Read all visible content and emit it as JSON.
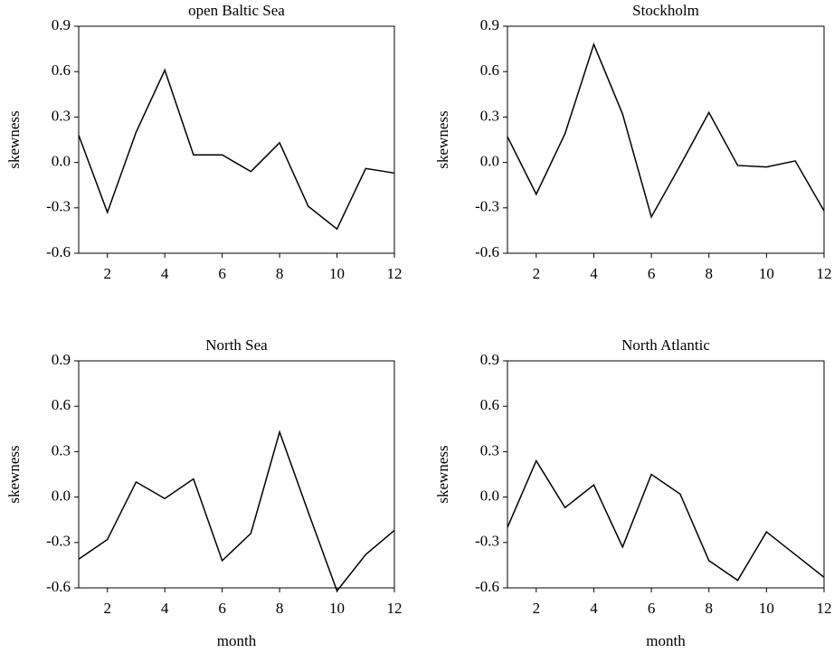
{
  "chart_data": [
    {
      "type": "line",
      "title": "open Baltic Sea",
      "ylabel": "skewness",
      "color": "#000000",
      "x": [
        1,
        2,
        3,
        4,
        5,
        6,
        7,
        8,
        9,
        10,
        11,
        12
      ],
      "values": [
        0.18,
        -0.33,
        0.2,
        0.61,
        0.05,
        0.05,
        -0.06,
        0.13,
        -0.29,
        -0.44,
        -0.04,
        -0.07
      ],
      "xlim": [
        1,
        12
      ],
      "xticks": [
        2,
        4,
        6,
        8,
        10,
        12
      ],
      "ylim": [
        -0.6,
        0.9
      ],
      "yticks": [
        -0.6,
        -0.3,
        {
          "value": 0,
          "label": "0.0"
        },
        0.3,
        0.6,
        0.9
      ]
    },
    {
      "type": "line",
      "title": "Stockholm",
      "ylabel": "skewness",
      "color": "#000000",
      "x": [
        1,
        2,
        3,
        4,
        5,
        6,
        7,
        8,
        9,
        10,
        11,
        12
      ],
      "values": [
        0.17,
        -0.21,
        0.19,
        0.78,
        0.32,
        -0.36,
        -0.02,
        0.33,
        -0.02,
        -0.03,
        0.01,
        -0.32
      ],
      "xlim": [
        1,
        12
      ],
      "xticks": [
        2,
        4,
        6,
        8,
        10,
        12
      ],
      "ylim": [
        -0.6,
        0.9
      ],
      "yticks": [
        -0.6,
        -0.3,
        {
          "value": 0,
          "label": "0.0"
        },
        0.3,
        0.6,
        0.9
      ]
    },
    {
      "type": "line",
      "title": "North Sea",
      "ylabel": "skewness",
      "xlabel": "month",
      "color": "#000000",
      "x": [
        1,
        2,
        3,
        4,
        5,
        6,
        7,
        8,
        9,
        10,
        11,
        12
      ],
      "values": [
        -0.41,
        -0.28,
        0.1,
        -0.01,
        0.12,
        -0.42,
        -0.24,
        0.43,
        -0.1,
        -0.62,
        -0.38,
        -0.22
      ],
      "xlim": [
        1,
        12
      ],
      "xticks": [
        2,
        4,
        6,
        8,
        10,
        12
      ],
      "ylim": [
        -0.6,
        0.9
      ],
      "yticks": [
        -0.6,
        -0.3,
        {
          "value": 0,
          "label": "0.0"
        },
        0.3,
        0.6,
        0.9
      ]
    },
    {
      "type": "line",
      "title": "North Atlantic",
      "ylabel": "skewness",
      "xlabel": "month",
      "color": "#000000",
      "x": [
        1,
        2,
        3,
        4,
        5,
        6,
        7,
        8,
        9,
        10,
        11,
        12
      ],
      "values": [
        -0.2,
        0.24,
        -0.07,
        0.08,
        -0.33,
        0.15,
        0.02,
        -0.42,
        -0.55,
        -0.23,
        -0.38,
        -0.53
      ],
      "xlim": [
        1,
        12
      ],
      "xticks": [
        2,
        4,
        6,
        8,
        10,
        12
      ],
      "ylim": [
        -0.6,
        0.9
      ],
      "yticks": [
        -0.6,
        -0.3,
        {
          "value": 0,
          "label": "0.0"
        },
        0.3,
        0.6,
        0.9
      ]
    }
  ]
}
